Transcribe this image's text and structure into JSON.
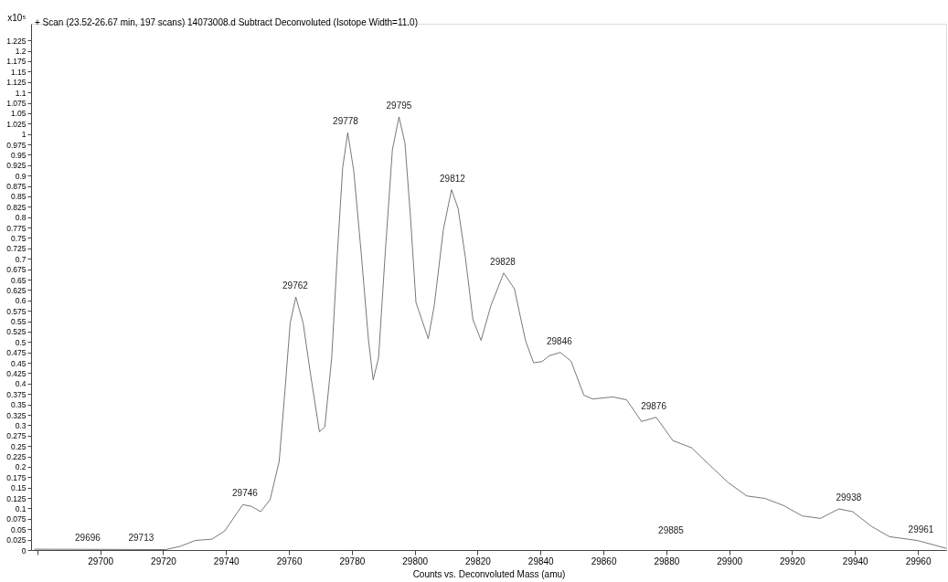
{
  "chart_data": {
    "type": "line",
    "title": "+ Scan (23.52-26.67 min, 197 scans) 14073008.d  Subtract Deconvoluted (Isotope Width=11.0)",
    "ylabel": "x10⁵",
    "xlabel": "Counts vs. Deconvoluted Mass (amu)",
    "color": "#555555",
    "x": [
      29679,
      29720.8,
      29725.5,
      29730.2,
      29735.5,
      29739.6,
      29745.3,
      29748.1,
      29751.0,
      29754.0,
      29756.9,
      29758.7,
      29760.4,
      29762.2,
      29764.5,
      29766.9,
      29769.7,
      29771.4,
      29773.6,
      29775.4,
      29777.1,
      29778.7,
      29780.6,
      29783.0,
      29785.3,
      29786.8,
      29788.5,
      29790.6,
      29792.9,
      29795.0,
      29796.9,
      29798.7,
      29800.4,
      29804.3,
      29806.2,
      29809.1,
      29811.7,
      29813.8,
      29816.1,
      29818.5,
      29821.1,
      29824.2,
      29828.3,
      29831.7,
      29835.2,
      29837.8,
      29840.5,
      29842.8,
      29846.3,
      29849.7,
      29853.8,
      29856.6,
      29863.0,
      29867.4,
      29872.1,
      29876.8,
      29882.1,
      29888.0,
      29893.8,
      29899.7,
      29905.6,
      29911.4,
      29917.3,
      29923.2,
      29929.0,
      29934.9,
      29939.3,
      29945.2,
      29951.0,
      29959.8,
      29965.7,
      29969.0
    ],
    "values": [
      0.002,
      0.001,
      0.009,
      0.023,
      0.026,
      0.046,
      0.109,
      0.105,
      0.092,
      0.121,
      0.213,
      0.38,
      0.546,
      0.608,
      0.546,
      0.421,
      0.284,
      0.296,
      0.462,
      0.712,
      0.92,
      1.003,
      0.912,
      0.712,
      0.504,
      0.409,
      0.462,
      0.712,
      0.962,
      1.041,
      0.978,
      0.795,
      0.595,
      0.508,
      0.587,
      0.77,
      0.866,
      0.821,
      0.704,
      0.554,
      0.504,
      0.587,
      0.666,
      0.628,
      0.504,
      0.45,
      0.453,
      0.467,
      0.475,
      0.454,
      0.372,
      0.363,
      0.368,
      0.361,
      0.309,
      0.319,
      0.263,
      0.246,
      0.204,
      0.162,
      0.13,
      0.124,
      0.107,
      0.082,
      0.076,
      0.099,
      0.092,
      0.057,
      0.032,
      0.023,
      0.011,
      0.004
    ],
    "xlim": [
      29678,
      29969
    ],
    "ylim": [
      0,
      1.265
    ],
    "xticks": [
      {
        "value": 29680,
        "label": null
      },
      29700,
      29720,
      29740,
      29760,
      29780,
      29800,
      29820,
      29840,
      29860,
      29880,
      29900,
      29920,
      29940,
      29960
    ],
    "yticks": [
      0,
      0.025,
      0.05,
      0.075,
      0.1,
      0.125,
      0.15,
      0.175,
      0.2,
      0.225,
      0.25,
      0.275,
      0.3,
      0.325,
      0.35,
      0.375,
      0.4,
      0.425,
      0.45,
      0.475,
      0.5,
      0.525,
      0.55,
      0.575,
      0.6,
      0.625,
      0.65,
      0.675,
      0.7,
      0.725,
      0.75,
      0.775,
      0.8,
      0.825,
      0.85,
      0.875,
      0.9,
      0.925,
      0.95,
      0.975,
      1,
      1.025,
      1.05,
      1.075,
      1.1,
      1.125,
      1.15,
      1.175,
      1.2,
      1.225
    ],
    "grid": false,
    "annotations": [
      {
        "text": "29696",
        "x": 29696,
        "y": 0.002
      },
      {
        "text": "29713",
        "x": 29713,
        "y": 0.002
      },
      {
        "text": "29746",
        "x": 29746,
        "y": 0.109
      },
      {
        "text": "29762",
        "x": 29762,
        "y": 0.608
      },
      {
        "text": "29778",
        "x": 29778,
        "y": 1.003
      },
      {
        "text": "29795",
        "x": 29795,
        "y": 1.041
      },
      {
        "text": "29812",
        "x": 29812,
        "y": 0.866
      },
      {
        "text": "29828",
        "x": 29828,
        "y": 0.666
      },
      {
        "text": "29846",
        "x": 29846,
        "y": 0.475
      },
      {
        "text": "29876",
        "x": 29876,
        "y": 0.319
      },
      "29885",
      {
        "text": "29938",
        "x": 29938,
        "y": 0.099
      },
      {
        "text": "29961",
        "x": 29961,
        "y": 0.023
      }
    ]
  }
}
